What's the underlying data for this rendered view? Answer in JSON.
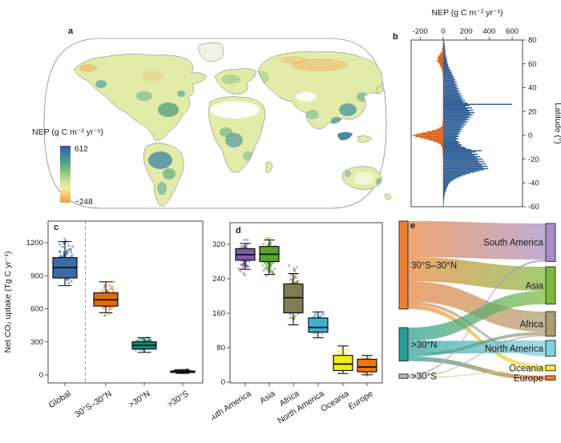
{
  "panels": {
    "a": {
      "label": "a",
      "legend_title": "NEP (g C m⁻² yr⁻¹)",
      "legend_max": "612",
      "legend_min": "−248"
    },
    "b": {
      "label": "b",
      "axis_title": "NEP (g C m⁻² yr⁻¹)",
      "ylabel": "Latitude (°)"
    },
    "c": {
      "label": "c",
      "ylabel": "Net CO₂ uptake (Tg C yr⁻¹)"
    },
    "d": {
      "label": "d"
    },
    "e": {
      "label": "e"
    }
  },
  "chart_data": [
    {
      "panel": "a",
      "type": "heatmap",
      "subtype": "world-map",
      "title": "NEP (g C m⁻² yr⁻¹)",
      "colorbar": {
        "min": -248,
        "max": 612,
        "min_label": "−248",
        "max_label": "612",
        "stops_top_to_bottom": [
          "#3c51a3",
          "#3b7fa2",
          "#4fa287",
          "#8fc27c",
          "#cfe29b",
          "#f2eca6",
          "#f6c46a",
          "#f19b45"
        ],
        "stop_offsets_pct": [
          0,
          14,
          30,
          46,
          62,
          76,
          88,
          100
        ]
      },
      "palette": {
        "land_base": "#e2eba8",
        "land_pale": "#f0f3e2",
        "patch_blue": "#2e7d9e",
        "patch_green": "#4f9e7c",
        "patch_teal": "#3f8fa0",
        "patch_orange": "#f2b568",
        "desert": "#ffffff",
        "coast": "#777777",
        "outline": "#8a8a8a"
      },
      "description": "Global map of mean net ecosystem productivity; strong uptake (blue-green) in the tropics and humid temperate regions, negative NEP (orange) in parts of boreal Siberia and Alaska, deserts blank."
    },
    {
      "panel": "b",
      "type": "bar",
      "orientation": "horizontal",
      "xlabel": "NEP (g C m⁻² yr⁻¹)",
      "ylabel": "Latitude (°)",
      "xticks": [
        -200,
        0,
        200,
        400,
        600
      ],
      "xtick_labels": [
        "-200",
        "0",
        "200",
        "400",
        "600"
      ],
      "yticks": [
        80,
        60,
        40,
        20,
        0,
        -20,
        -40,
        -60
      ],
      "xlim": [
        -300,
        700
      ],
      "ylim": [
        -60,
        80
      ],
      "colors": {
        "positive": "#2f5f96",
        "negative": "#d96219"
      },
      "profile_lat_pos_neg": [
        [
          80,
          5,
          0
        ],
        [
          79,
          8,
          0
        ],
        [
          78,
          12,
          -2
        ],
        [
          77,
          10,
          -3
        ],
        [
          76,
          15,
          -2
        ],
        [
          75,
          12,
          -5
        ],
        [
          74,
          18,
          -4
        ],
        [
          73,
          14,
          -8
        ],
        [
          72,
          20,
          -6
        ],
        [
          71,
          16,
          -10
        ],
        [
          70,
          22,
          -15
        ],
        [
          69,
          18,
          -22
        ],
        [
          68,
          25,
          -30
        ],
        [
          67,
          20,
          -38
        ],
        [
          66,
          28,
          -45
        ],
        [
          65,
          24,
          -52
        ],
        [
          64,
          35,
          -42
        ],
        [
          63,
          30,
          -56
        ],
        [
          62,
          38,
          -48
        ],
        [
          61,
          32,
          -40
        ],
        [
          60,
          40,
          -34
        ],
        [
          59,
          46,
          -28
        ],
        [
          58,
          42,
          -24
        ],
        [
          57,
          55,
          -18
        ],
        [
          56,
          50,
          -14
        ],
        [
          55,
          66,
          -11
        ],
        [
          54,
          60,
          -8
        ],
        [
          53,
          76,
          -6
        ],
        [
          52,
          70,
          -5
        ],
        [
          51,
          86,
          -4
        ],
        [
          50,
          80,
          -3
        ],
        [
          49,
          96,
          -2
        ],
        [
          48,
          88,
          -2
        ],
        [
          47,
          106,
          -2
        ],
        [
          46,
          95,
          0
        ],
        [
          45,
          116,
          0
        ],
        [
          44,
          100,
          -2
        ],
        [
          43,
          120,
          0
        ],
        [
          42,
          108,
          -2
        ],
        [
          41,
          128,
          0
        ],
        [
          40,
          115,
          -2
        ],
        [
          39,
          136,
          0
        ],
        [
          38,
          122,
          -2
        ],
        [
          37,
          146,
          0
        ],
        [
          36,
          130,
          0
        ],
        [
          35,
          156,
          -2
        ],
        [
          34,
          140,
          0
        ],
        [
          33,
          166,
          0
        ],
        [
          32,
          150,
          -2
        ],
        [
          31,
          176,
          0
        ],
        [
          30,
          160,
          0
        ],
        [
          29,
          192,
          -2
        ],
        [
          28,
          172,
          0
        ],
        [
          27,
          212,
          0
        ],
        [
          26,
          600,
          0
        ],
        [
          25,
          232,
          -2
        ],
        [
          24,
          196,
          0
        ],
        [
          23,
          252,
          0
        ],
        [
          22,
          212,
          -3
        ],
        [
          21,
          262,
          0
        ],
        [
          20,
          226,
          -2
        ],
        [
          19,
          272,
          0
        ],
        [
          18,
          236,
          -3
        ],
        [
          17,
          256,
          0
        ],
        [
          16,
          222,
          -2
        ],
        [
          15,
          242,
          0
        ],
        [
          14,
          206,
          -4
        ],
        [
          13,
          226,
          0
        ],
        [
          12,
          192,
          -5
        ],
        [
          11,
          212,
          -4
        ],
        [
          10,
          176,
          -8
        ],
        [
          9,
          196,
          -6
        ],
        [
          8,
          162,
          -12
        ],
        [
          7,
          182,
          -20
        ],
        [
          6,
          152,
          -36
        ],
        [
          5,
          166,
          -60
        ],
        [
          4,
          142,
          -96
        ],
        [
          3,
          156,
          -140
        ],
        [
          2,
          132,
          -186
        ],
        [
          1,
          146,
          -232
        ],
        [
          0,
          122,
          -266
        ],
        [
          -1,
          136,
          -242
        ],
        [
          -2,
          116,
          -200
        ],
        [
          -3,
          132,
          -162
        ],
        [
          -4,
          112,
          -120
        ],
        [
          -5,
          126,
          -86
        ],
        [
          -6,
          146,
          -56
        ],
        [
          -7,
          132,
          -36
        ],
        [
          -8,
          162,
          -22
        ],
        [
          -9,
          152,
          -15
        ],
        [
          -10,
          186,
          -10
        ],
        [
          -11,
          202,
          -8
        ],
        [
          -12,
          242,
          -6
        ],
        [
          -13,
          332,
          -5
        ],
        [
          -14,
          282,
          -4
        ],
        [
          -15,
          252,
          -6
        ],
        [
          -16,
          302,
          -4
        ],
        [
          -17,
          272,
          -3
        ],
        [
          -18,
          322,
          -3
        ],
        [
          -19,
          292,
          -2
        ],
        [
          -20,
          342,
          -2
        ],
        [
          -21,
          302,
          -3
        ],
        [
          -22,
          356,
          -2
        ],
        [
          -23,
          312,
          -2
        ],
        [
          -24,
          372,
          -2
        ],
        [
          -25,
          332,
          0
        ],
        [
          -26,
          386,
          -2
        ],
        [
          -27,
          346,
          0
        ],
        [
          -28,
          392,
          0
        ],
        [
          -29,
          352,
          -2
        ],
        [
          -30,
          312,
          0
        ],
        [
          -31,
          272,
          -2
        ],
        [
          -32,
          232,
          0
        ],
        [
          -33,
          196,
          -2
        ],
        [
          -34,
          166,
          0
        ],
        [
          -35,
          142,
          -2
        ],
        [
          -36,
          116,
          0
        ],
        [
          -37,
          96,
          -2
        ],
        [
          -38,
          82,
          0
        ],
        [
          -39,
          66,
          -2
        ],
        [
          -40,
          56,
          0
        ],
        [
          -41,
          48,
          -2
        ],
        [
          -42,
          42,
          0
        ],
        [
          -43,
          38,
          -2
        ],
        [
          -44,
          32,
          0
        ],
        [
          -45,
          28,
          0
        ],
        [
          -46,
          25,
          -2
        ],
        [
          -47,
          22,
          0
        ],
        [
          -48,
          18,
          0
        ],
        [
          -49,
          15,
          -2
        ],
        [
          -50,
          14,
          0
        ],
        [
          -51,
          12,
          0
        ],
        [
          -52,
          10,
          0
        ],
        [
          -53,
          9,
          0
        ],
        [
          -54,
          8,
          0
        ],
        [
          -55,
          7,
          0
        ],
        [
          -56,
          6,
          0
        ],
        [
          -57,
          5,
          0
        ],
        [
          -58,
          5,
          0
        ],
        [
          -59,
          4,
          0
        ],
        [
          -60,
          4,
          0
        ]
      ]
    },
    {
      "panel": "c",
      "type": "boxplot",
      "ylabel": "Net CO₂ uptake (Tg C yr⁻¹)",
      "yticks": [
        0,
        300,
        600,
        900,
        1200
      ],
      "ylim": [
        -90,
        1390
      ],
      "divider_after_first": true,
      "categories": [
        "Global",
        "30°S–30°N",
        ">30°N",
        ">30°S"
      ],
      "boxes": [
        {
          "label": "Global",
          "color": "#3a6ba6",
          "whisker_low": 810,
          "q1": 880,
          "median": 975,
          "q3": 1065,
          "whisker_high": 1210,
          "points_min": 770,
          "points_max": 1305,
          "n_points": 95
        },
        {
          "label": "30°S–30°N",
          "color": "#e06c14",
          "whisker_low": 565,
          "q1": 625,
          "median": 682,
          "q3": 745,
          "whisker_high": 845,
          "points_min": 520,
          "points_max": 880,
          "n_points": 95
        },
        {
          "label": ">30°N",
          "color": "#12897d",
          "whisker_low": 205,
          "q1": 235,
          "median": 268,
          "q3": 300,
          "whisker_high": 338,
          "points_min": 195,
          "points_max": 365,
          "n_points": 70
        },
        {
          "label": ">30°S",
          "color": "#161616",
          "whisker_low": 14,
          "q1": 22,
          "median": 28,
          "q3": 36,
          "whisker_high": 44,
          "points_min": 8,
          "points_max": 55,
          "n_points": 40
        }
      ]
    },
    {
      "panel": "d",
      "type": "boxplot",
      "yticks": [
        0,
        80,
        160,
        240,
        320
      ],
      "ylim": [
        0,
        372
      ],
      "categories": [
        "South America",
        "Asia",
        "Africa",
        "North America",
        "Oceania",
        "Europe"
      ],
      "boxes": [
        {
          "label": "South America",
          "color": "#7b5aa6",
          "whisker_low": 262,
          "q1": 283,
          "median": 296,
          "q3": 310,
          "whisker_high": 322,
          "points_min": 238,
          "points_max": 345,
          "n_points": 85
        },
        {
          "label": "Asia",
          "color": "#5aa230",
          "whisker_low": 250,
          "q1": 280,
          "median": 297,
          "q3": 315,
          "whisker_high": 330,
          "points_min": 222,
          "points_max": 345,
          "n_points": 100
        },
        {
          "label": "Africa",
          "color": "#7f7d54",
          "whisker_low": 133,
          "q1": 161,
          "median": 196,
          "q3": 228,
          "whisker_high": 252,
          "points_min": 112,
          "points_max": 290,
          "n_points": 130
        },
        {
          "label": "North America",
          "color": "#3fb1cb",
          "whisker_low": 103,
          "q1": 116,
          "median": 127,
          "q3": 149,
          "whisker_high": 163,
          "points_min": 95,
          "points_max": 172,
          "n_points": 75
        },
        {
          "label": "Oceania",
          "color": "#f2ed1c",
          "whisker_low": 20,
          "q1": 27,
          "median": 42,
          "q3": 62,
          "whisker_high": 84,
          "points_min": 14,
          "points_max": 92,
          "n_points": 60
        },
        {
          "label": "Europe",
          "color": "#f1770f",
          "whisker_low": 17,
          "q1": 24,
          "median": 35,
          "q3": 53,
          "whisker_high": 62,
          "points_min": 11,
          "points_max": 68,
          "n_points": 55
        }
      ]
    },
    {
      "panel": "e",
      "type": "sankey",
      "sources": [
        {
          "id": "tropics",
          "label": "30°S–30°N",
          "color": "#e8823a",
          "value": 695
        },
        {
          "id": "n30",
          "label": ">30°N",
          "color": "#2b9e94",
          "value": 264
        },
        {
          "id": "s30",
          "label": ">30°S",
          "color": "#b9babc",
          "value": 33
        }
      ],
      "targets": [
        {
          "id": "sa",
          "label": "South America",
          "color": "#a78cc4",
          "value": 300
        },
        {
          "id": "asia",
          "label": "Asia",
          "color": "#7cb83d",
          "value": 295
        },
        {
          "id": "africa",
          "label": "Africa",
          "color": "#a89c70",
          "value": 194
        },
        {
          "id": "na",
          "label": "North America",
          "color": "#82cfe0",
          "value": 125
        },
        {
          "id": "oceania",
          "label": "Oceania",
          "color": "#f4ee33",
          "value": 43
        },
        {
          "id": "europe",
          "label": "Europe",
          "color": "#f07e28",
          "value": 35
        }
      ],
      "links": [
        {
          "source": "tropics",
          "target": "sa",
          "value": 285
        },
        {
          "source": "tropics",
          "target": "asia",
          "value": 190
        },
        {
          "source": "tropics",
          "target": "africa",
          "value": 160
        },
        {
          "source": "tropics",
          "target": "na",
          "value": 25
        },
        {
          "source": "tropics",
          "target": "oceania",
          "value": 35
        },
        {
          "source": "n30",
          "target": "asia",
          "value": 105
        },
        {
          "source": "n30",
          "target": "na",
          "value": 100
        },
        {
          "source": "n30",
          "target": "africa",
          "value": 24
        },
        {
          "source": "n30",
          "target": "europe",
          "value": 35
        },
        {
          "source": "s30",
          "target": "sa",
          "value": 15
        },
        {
          "source": "s30",
          "target": "africa",
          "value": 10
        },
        {
          "source": "s30",
          "target": "oceania",
          "value": 8
        }
      ]
    }
  ]
}
